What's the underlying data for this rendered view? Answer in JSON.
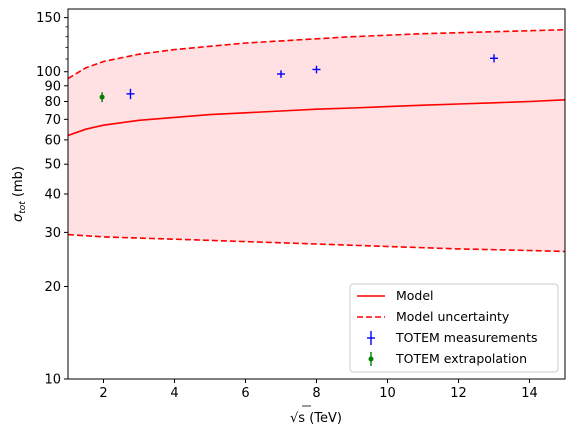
{
  "chart_data": {
    "type": "line",
    "xlabel_main": "√s",
    "xlabel_unit": " (TeV)",
    "ylabel_main": "σ",
    "ylabel_sub": "tot",
    "ylabel_unit": " (mb)",
    "xlim": [
      1,
      15
    ],
    "ylim": [
      10,
      160
    ],
    "yscale": "log",
    "grid": false,
    "legend_position": "lower-right",
    "x_ticks": [
      2,
      4,
      6,
      8,
      10,
      12,
      14
    ],
    "x_tick_labels": [
      "2",
      "4",
      "6",
      "8",
      "10",
      "12",
      "14"
    ],
    "y_major_ticks": [
      10,
      20,
      30,
      40,
      50,
      60,
      70,
      80,
      90,
      100,
      150
    ],
    "y_major_tick_labels": [
      "10",
      "20",
      "30",
      "40",
      "50",
      "60",
      "70",
      "80",
      "90",
      "100",
      "150"
    ],
    "y_minor_ticks": [
      110,
      120,
      130,
      140
    ],
    "band_color": "#ffe0e3",
    "series": [
      {
        "name": "Model",
        "style": "solid",
        "color": "#ff0000",
        "x": [
          1,
          1.5,
          2,
          3,
          4,
          5,
          6,
          7,
          8,
          9,
          10,
          11,
          12,
          13,
          14,
          15
        ],
        "y": [
          62,
          65,
          67,
          69.5,
          71,
          72.5,
          73.5,
          74.5,
          75.5,
          76.2,
          77,
          77.8,
          78.5,
          79.2,
          80,
          81
        ]
      },
      {
        "name": "Model uncertainty",
        "style": "dashed",
        "color": "#ff0000",
        "upper": {
          "x": [
            1,
            1.5,
            2,
            3,
            4,
            5,
            6,
            7,
            8,
            9,
            10,
            11,
            12,
            13,
            14,
            15
          ],
          "y": [
            95,
            103,
            108,
            114,
            118,
            121,
            124,
            126,
            128,
            130,
            131.5,
            133,
            134,
            135,
            136,
            137
          ]
        },
        "lower": {
          "x": [
            1,
            2,
            4,
            6,
            8,
            10,
            12,
            14,
            15
          ],
          "y": [
            29.5,
            29,
            28.5,
            28,
            27.5,
            27,
            26.5,
            26.2,
            26
          ]
        }
      },
      {
        "name": "TOTEM measurements",
        "color": "#0000ff",
        "marker": "errorbar",
        "points": [
          {
            "x": 2.76,
            "y": 84.7,
            "yerr": 3.3
          },
          {
            "x": 7,
            "y": 98.3,
            "yerr": 2.8
          },
          {
            "x": 8,
            "y": 101.7,
            "yerr": 2.9
          },
          {
            "x": 13,
            "y": 110.6,
            "yerr": 3.4
          }
        ]
      },
      {
        "name": "TOTEM extrapolation",
        "color": "#008000",
        "marker": "dot-errorbar",
        "points": [
          {
            "x": 1.96,
            "y": 82.7,
            "yerr": 3.1
          }
        ]
      }
    ]
  }
}
